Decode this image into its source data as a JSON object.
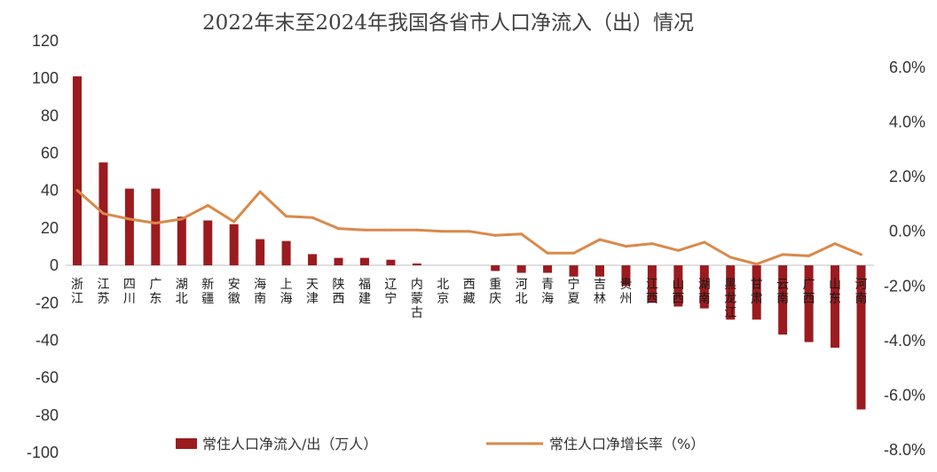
{
  "chart_data": {
    "type": "bar+line",
    "title": "2022年末至2024年我国各省市人口净流入（出）情况",
    "categories": [
      "浙江",
      "江苏",
      "四川",
      "广东",
      "湖北",
      "新疆",
      "安徽",
      "海南",
      "上海",
      "天津",
      "陕西",
      "福建",
      "辽宁",
      "内蒙古",
      "北京",
      "西藏",
      "重庆",
      "河北",
      "青海",
      "宁夏",
      "吉林",
      "贵州",
      "江西",
      "山西",
      "湖南",
      "黑龙江",
      "甘肃",
      "云南",
      "广西",
      "山东",
      "河南"
    ],
    "series": [
      {
        "name": "常住人口净流入/出（万人）",
        "type": "bar",
        "axis": "left",
        "color": "#9b1b1f",
        "values": [
          101,
          55,
          41,
          41,
          26,
          24,
          22,
          14,
          13,
          6,
          4,
          4,
          3,
          1,
          0,
          0,
          -3,
          -4,
          -4,
          -6,
          -6,
          -11,
          -20,
          -22,
          -23,
          -29,
          -29,
          -37,
          -41,
          -44,
          -77
        ]
      },
      {
        "name": "常住人口净增长率（%）",
        "type": "line",
        "axis": "right",
        "color": "#d9894a",
        "values": [
          1.5,
          0.65,
          0.45,
          0.3,
          0.45,
          0.95,
          0.35,
          1.45,
          0.55,
          0.5,
          0.1,
          0.05,
          0.05,
          0.05,
          0.0,
          0.0,
          -0.15,
          -0.1,
          -0.8,
          -0.8,
          -0.3,
          -0.55,
          -0.45,
          -0.7,
          -0.4,
          -0.95,
          -1.2,
          -0.85,
          -0.9,
          -0.45,
          -0.85
        ]
      }
    ],
    "left_axis": {
      "ylim": [
        -100,
        120
      ],
      "ticks": [
        -100,
        -80,
        -60,
        -40,
        -20,
        0,
        20,
        40,
        60,
        80,
        100,
        120
      ]
    },
    "right_axis": {
      "ylim": [
        -8,
        6
      ],
      "ticks": [
        "-8.0%",
        "-6.0%",
        "-4.0%",
        "-2.0%",
        "0.0%",
        "2.0%",
        "4.0%",
        "6.0%"
      ]
    },
    "legend_position": "bottom",
    "grid": false
  }
}
